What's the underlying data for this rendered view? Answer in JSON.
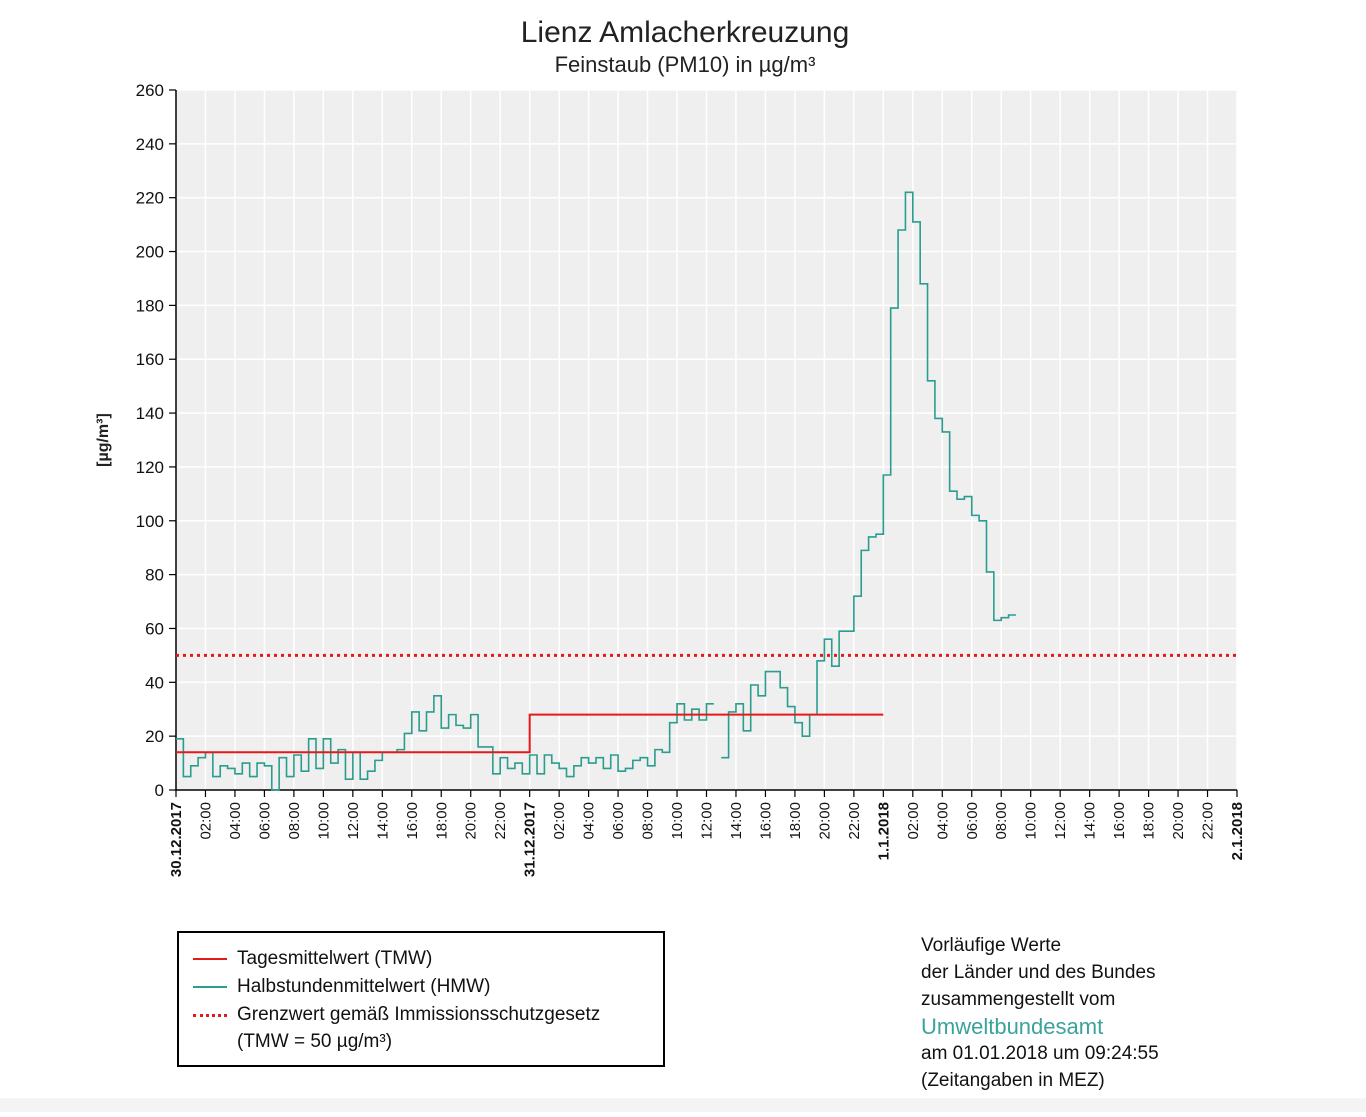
{
  "chart_data": {
    "type": "line",
    "title": "Lienz Amlacherkreuzung",
    "subtitle": "Feinstaub (PM10) in µg/m³",
    "ylabel": "[µg/m³]",
    "ylim": [
      0,
      260
    ],
    "yticks": [
      0,
      20,
      40,
      60,
      80,
      100,
      120,
      140,
      160,
      180,
      200,
      220,
      240,
      260
    ],
    "x_range_hours": [
      0,
      48
    ],
    "x_ticks": [
      {
        "h": 0,
        "label": "30.12.2017"
      },
      {
        "h": 2,
        "label": "02:00"
      },
      {
        "h": 4,
        "label": "04:00"
      },
      {
        "h": 6,
        "label": "06:00"
      },
      {
        "h": 8,
        "label": "08:00"
      },
      {
        "h": 10,
        "label": "10:00"
      },
      {
        "h": 12,
        "label": "12:00"
      },
      {
        "h": 14,
        "label": "14:00"
      },
      {
        "h": 16,
        "label": "16:00"
      },
      {
        "h": 18,
        "label": "18:00"
      },
      {
        "h": 20,
        "label": "20:00"
      },
      {
        "h": 22,
        "label": "22:00"
      },
      {
        "h": 24,
        "label": "31.12.2017"
      },
      {
        "h": 26,
        "label": "02:00"
      },
      {
        "h": 28,
        "label": "04:00"
      },
      {
        "h": 30,
        "label": "06:00"
      },
      {
        "h": 32,
        "label": "08:00"
      },
      {
        "h": 34,
        "label": "10:00"
      },
      {
        "h": 36,
        "label": "12:00"
      },
      {
        "h": 38,
        "label": "14:00"
      },
      {
        "h": 40,
        "label": "16:00"
      },
      {
        "h": 42,
        "label": "18:00"
      },
      {
        "h": 44,
        "label": "20:00"
      },
      {
        "h": 46,
        "label": "22:00"
      },
      {
        "h": 48,
        "label": "1.1.2018"
      },
      {
        "h": 50,
        "label": "02:00"
      },
      {
        "h": 52,
        "label": "04:00"
      },
      {
        "h": 54,
        "label": "06:00"
      },
      {
        "h": 56,
        "label": "08:00"
      },
      {
        "h": 58,
        "label": "10:00"
      },
      {
        "h": 60,
        "label": "12:00"
      },
      {
        "h": 62,
        "label": "14:00"
      },
      {
        "h": 64,
        "label": "16:00"
      },
      {
        "h": 66,
        "label": "18:00"
      },
      {
        "h": 68,
        "label": "20:00"
      },
      {
        "h": 70,
        "label": "22:00"
      },
      {
        "h": 72,
        "label": "2.1.2018"
      }
    ],
    "x_max_hours": 72,
    "grid": true,
    "series": [
      {
        "name": "Halbstundenmittelwert (HMW)",
        "color": "#2a9d8f",
        "step_half_hour_values": [
          19,
          5,
          9,
          12,
          14,
          5,
          9,
          8,
          6,
          10,
          5,
          10,
          9,
          0,
          12,
          5,
          13,
          7,
          19,
          8,
          19,
          10,
          15,
          4,
          14,
          4,
          7,
          11,
          14,
          14,
          15,
          21,
          29,
          22,
          29,
          35,
          23,
          28,
          24,
          23,
          28,
          16,
          16,
          6,
          12,
          8,
          10,
          6,
          13,
          6,
          13,
          10,
          8,
          5,
          9,
          12,
          10,
          12,
          8,
          13,
          7,
          8,
          11,
          12,
          9,
          15,
          14,
          25,
          32,
          26,
          30,
          26,
          32,
          null,
          12,
          29,
          32,
          22,
          39,
          35,
          44,
          44,
          38,
          31,
          25,
          20,
          28,
          48,
          56,
          46,
          59,
          59,
          72,
          89,
          94,
          95,
          117,
          179,
          208,
          222,
          211,
          188,
          152,
          138,
          133,
          111,
          108,
          109,
          102,
          100,
          81,
          63,
          64,
          65
        ]
      },
      {
        "name": "Tagesmittelwert (TMW)",
        "color": "#e31a1c",
        "daily_segments": [
          {
            "from_h": 0,
            "to_h": 24,
            "value": 14
          },
          {
            "from_h": 24,
            "to_h": 48,
            "value": 28
          }
        ]
      },
      {
        "name": "Grenzwert gemäß Immissionsschutzgesetz",
        "color": "#e31a1c",
        "dotted": true,
        "value": 50
      }
    ],
    "legend": {
      "placement": "bottom-left",
      "entries": [
        {
          "label": "Tagesmittelwert (TMW)",
          "color": "#e31a1c",
          "style": "solid"
        },
        {
          "label": "Halbstundenmittelwert (HMW)",
          "color": "#2a9d8f",
          "style": "solid"
        },
        {
          "label": "Grenzwert gemäß Immissionsschutzgesetz",
          "color": "#e31a1c",
          "style": "dotted"
        }
      ],
      "sub_label": "(TMW = 50 µg/m³)"
    }
  },
  "note": {
    "line1": "Vorläufige Werte",
    "line2": "der Länder und des Bundes",
    "line3": "zusammengestellt vom",
    "org": "Umweltbundesamt",
    "line5": "am 01.01.2018 um 09:24:55",
    "line6": "(Zeitangaben in MEZ)"
  }
}
